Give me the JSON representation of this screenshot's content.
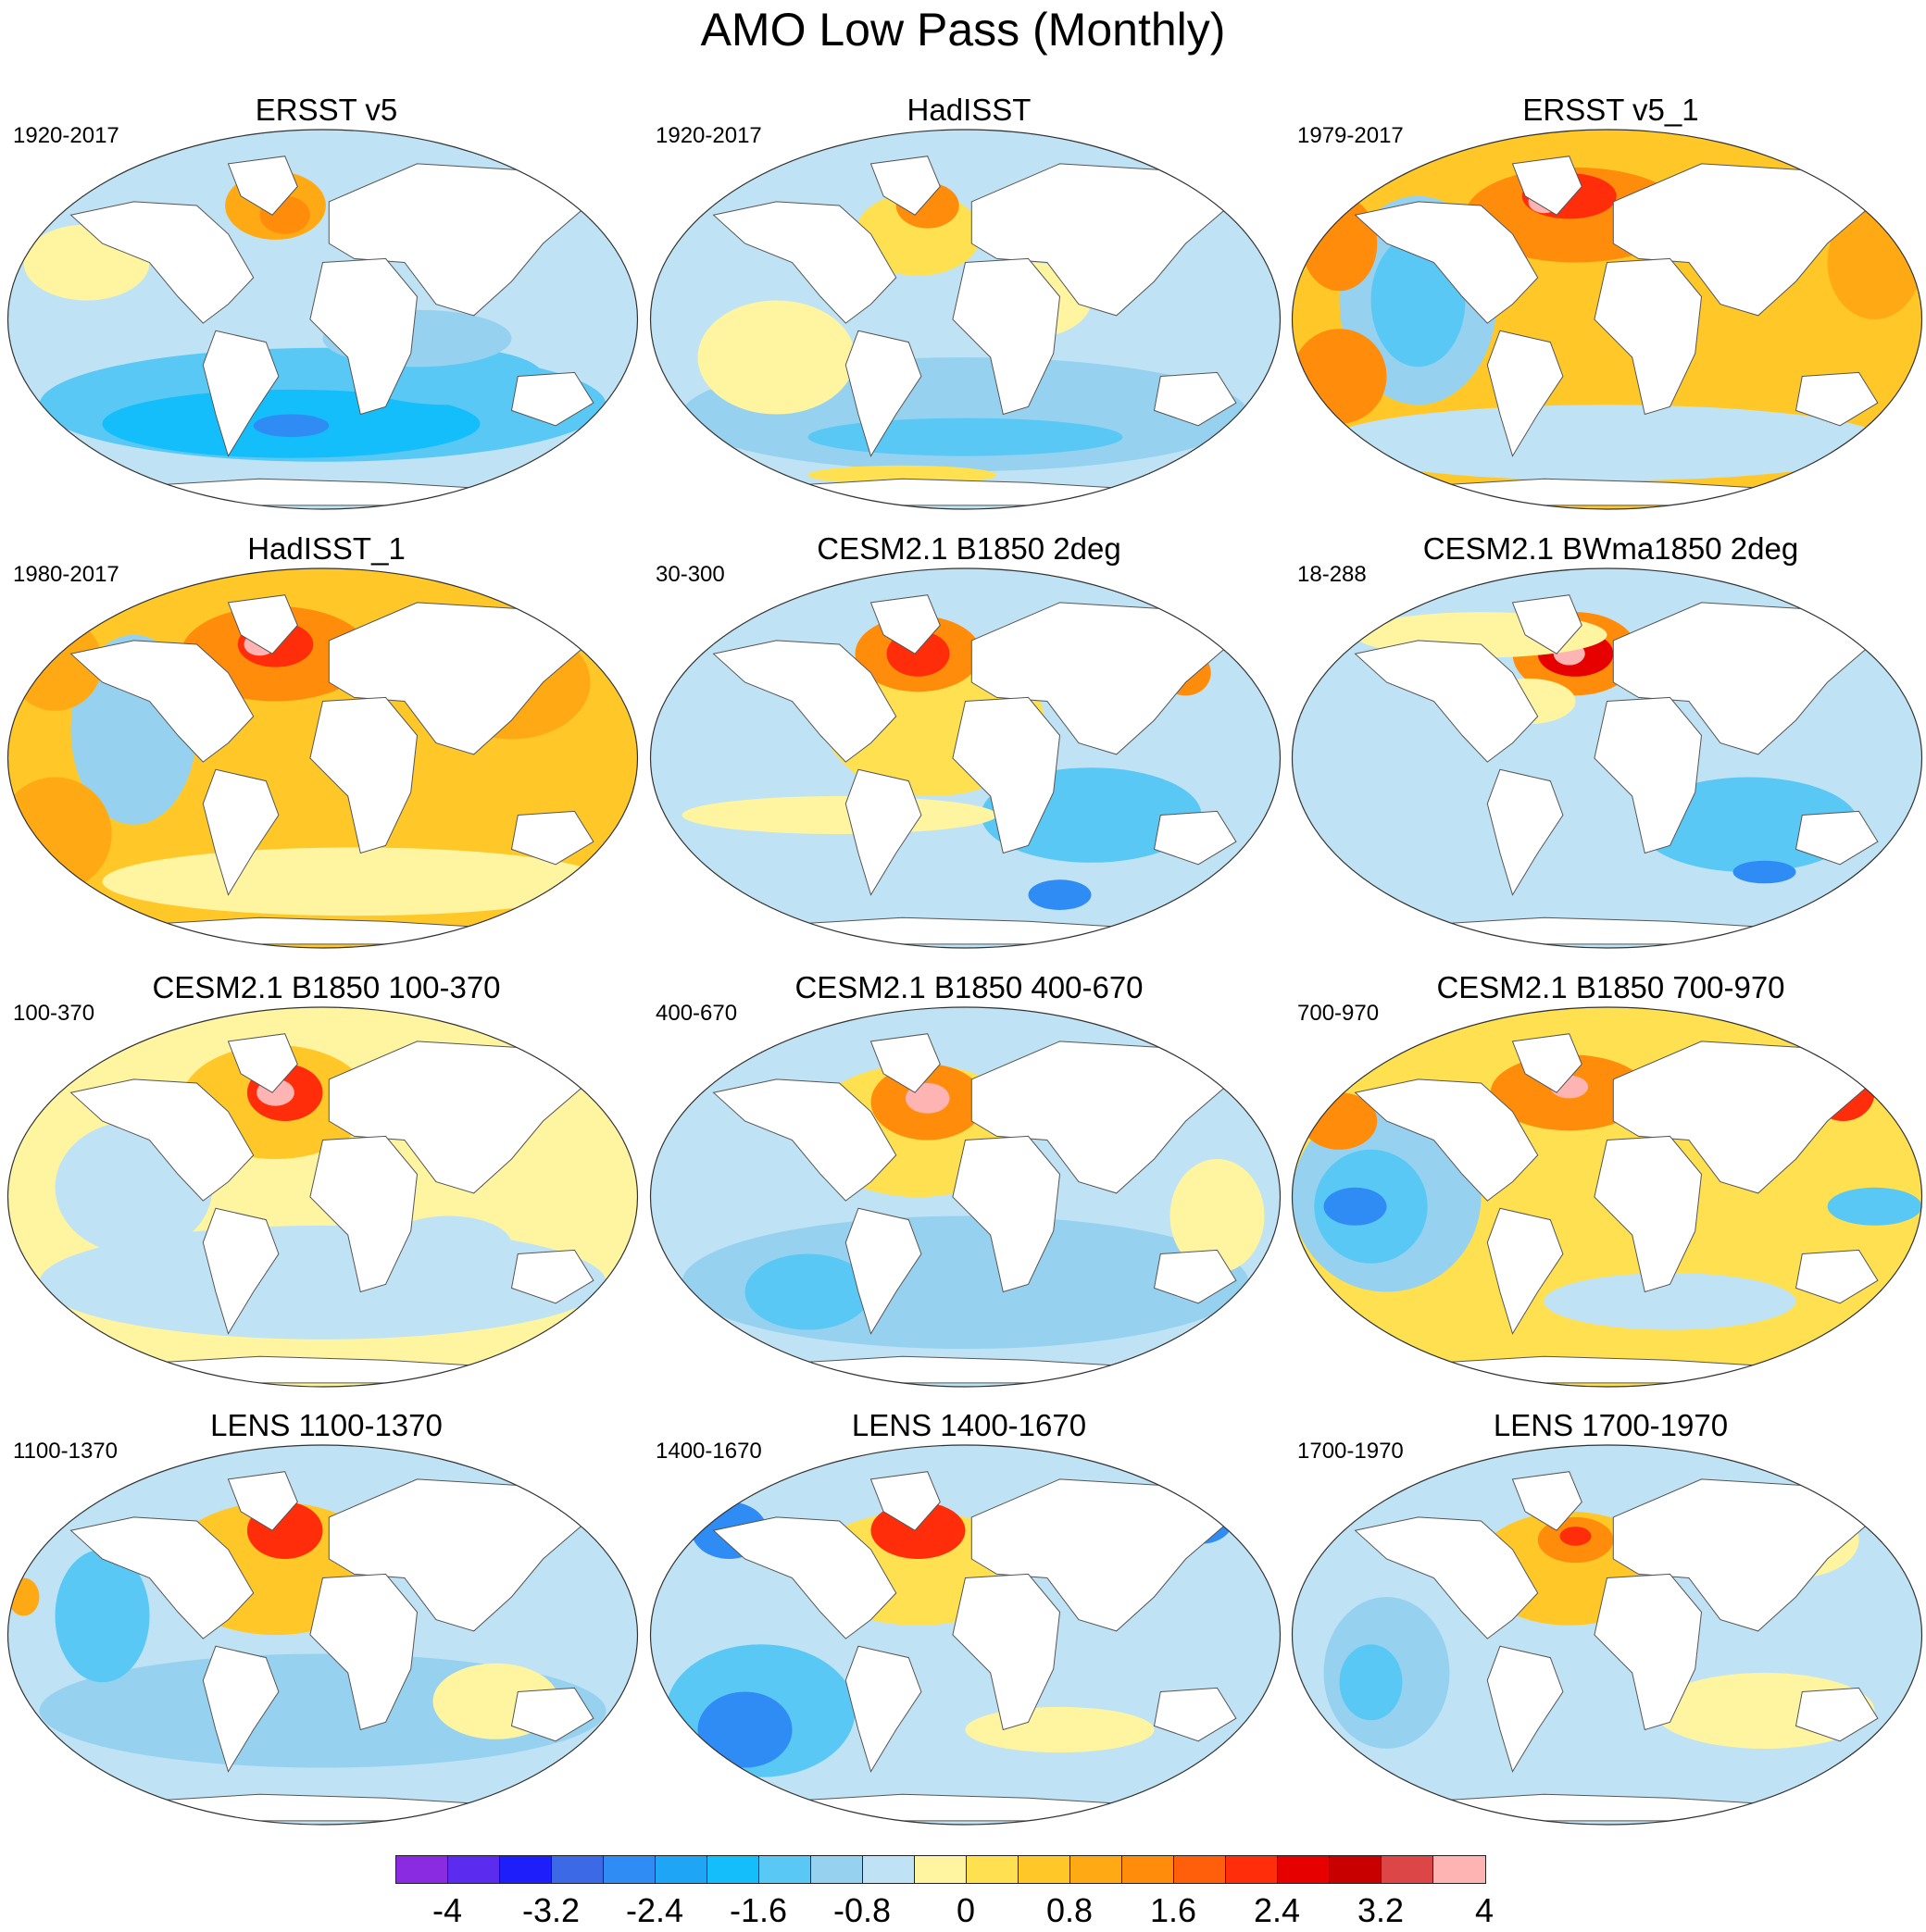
{
  "title": "AMO Low Pass (Monthly)",
  "panels": [
    {
      "title": "ERSST v5",
      "period": "1920-2017",
      "pattern": "a"
    },
    {
      "title": "HadISST",
      "period": "1920-2017",
      "pattern": "b"
    },
    {
      "title": "ERSST v5_1",
      "period": "1979-2017",
      "pattern": "c"
    },
    {
      "title": "HadISST_1",
      "period": "1980-2017",
      "pattern": "d"
    },
    {
      "title": "CESM2.1 B1850 2deg",
      "period": "30-300",
      "pattern": "e"
    },
    {
      "title": "CESM2.1 BWma1850 2deg",
      "period": "18-288",
      "pattern": "f"
    },
    {
      "title": "CESM2.1 B1850 100-370",
      "period": "100-370",
      "pattern": "g"
    },
    {
      "title": "CESM2.1 B1850 400-670",
      "period": "400-670",
      "pattern": "h"
    },
    {
      "title": "CESM2.1 B1850 700-970",
      "period": "700-970",
      "pattern": "i"
    },
    {
      "title": "LENS 1100-1370",
      "period": "1100-1370",
      "pattern": "j"
    },
    {
      "title": "LENS 1400-1670",
      "period": "1400-1670",
      "pattern": "k"
    },
    {
      "title": "LENS 1700-1970",
      "period": "1700-1970",
      "pattern": "l"
    }
  ],
  "colorbar": {
    "colors": [
      "#8a2be2",
      "#5b2cf0",
      "#1e1efa",
      "#3c6ae6",
      "#2f8cf5",
      "#1fa5f5",
      "#14befa",
      "#5ac8f5",
      "#96d2f0",
      "#bfe3f5",
      "#fff5a0",
      "#ffe050",
      "#ffc828",
      "#ffaa14",
      "#ff8c0a",
      "#ff5f0a",
      "#ff2d0a",
      "#e60000",
      "#c80000",
      "#dc4646",
      "#ffb4b4"
    ],
    "labels": [
      "-4",
      "-3.2",
      "-2.4",
      "-1.6",
      "-0.8",
      "0",
      "0.8",
      "1.6",
      "2.4",
      "3.2",
      "4"
    ]
  }
}
